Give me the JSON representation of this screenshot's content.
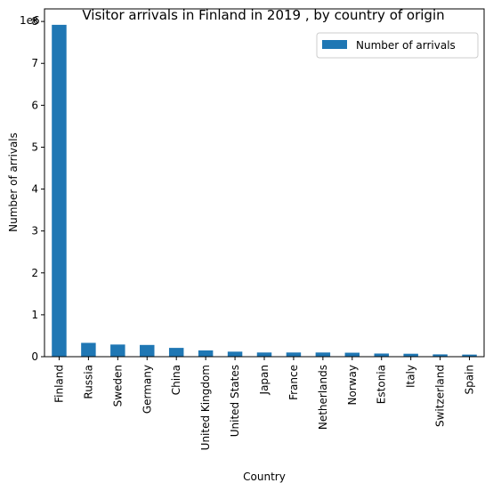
{
  "chart_data": {
    "type": "bar",
    "title": "Visitor arrivals in Finland in 2019 , by country of origin",
    "xlabel": "Country",
    "ylabel": "Number of arrivals",
    "offset_text": "1e6",
    "categories": [
      "Finland",
      "Russia",
      "Sweden",
      "Germany",
      "China",
      "United Kingdom",
      "United States",
      "Japan",
      "France",
      "Netherlands",
      "Norway",
      "Estonia",
      "Italy",
      "Switzerland",
      "Spain"
    ],
    "series": [
      {
        "name": "Number of arrivals",
        "values": [
          7920000,
          330000,
          290000,
          280000,
          210000,
          150000,
          120000,
          100000,
          100000,
          100000,
          95000,
          75000,
          70000,
          55000,
          50000
        ]
      }
    ],
    "ylim": [
      0,
      8300000
    ],
    "yticks": [
      0,
      1000000,
      2000000,
      3000000,
      4000000,
      5000000,
      6000000,
      7000000,
      8000000
    ],
    "ytick_labels": [
      "0",
      "1",
      "2",
      "3",
      "4",
      "5",
      "6",
      "7",
      "8"
    ],
    "grid": false,
    "legend": "top-right",
    "color": "#1f77b4"
  }
}
